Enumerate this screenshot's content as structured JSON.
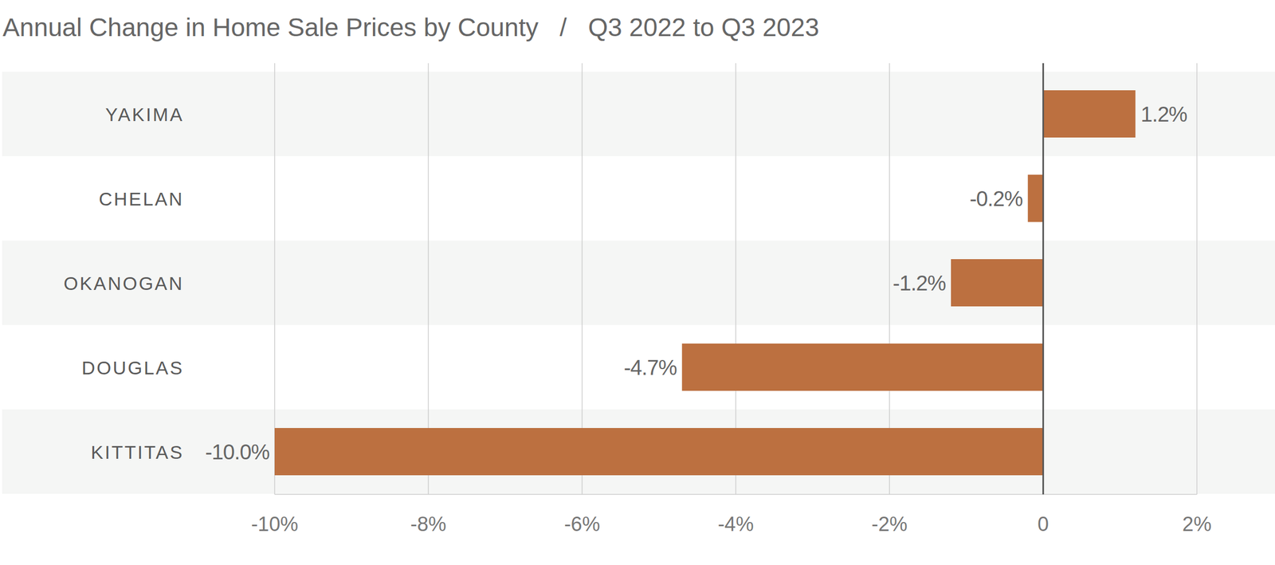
{
  "chart_data": {
    "type": "bar",
    "orientation": "horizontal",
    "title": "Annual Change in Home Sale Prices by County   /   Q3 2022 to Q3 2023",
    "categories": [
      "YAKIMA",
      "CHELAN",
      "OKANOGAN",
      "DOUGLAS",
      "KITTITAS"
    ],
    "values": [
      1.2,
      -0.2,
      -1.2,
      -4.7,
      -10.0
    ],
    "value_labels": [
      "1.2%",
      "-0.2%",
      "-1.2%",
      "-4.7%",
      "-10.0%"
    ],
    "color": "#bc7040",
    "xlim": [
      -10,
      2
    ],
    "xticks": [
      {
        "value": -10,
        "label": "-10%"
      },
      {
        "value": -8,
        "label": "-8%"
      },
      {
        "value": -6,
        "label": "-6%"
      },
      {
        "value": -4,
        "label": "-4%"
      },
      {
        "value": -2,
        "label": "-2%"
      },
      0,
      {
        "value": 2,
        "label": "2%"
      }
    ],
    "grid": true,
    "data_labels": true
  }
}
